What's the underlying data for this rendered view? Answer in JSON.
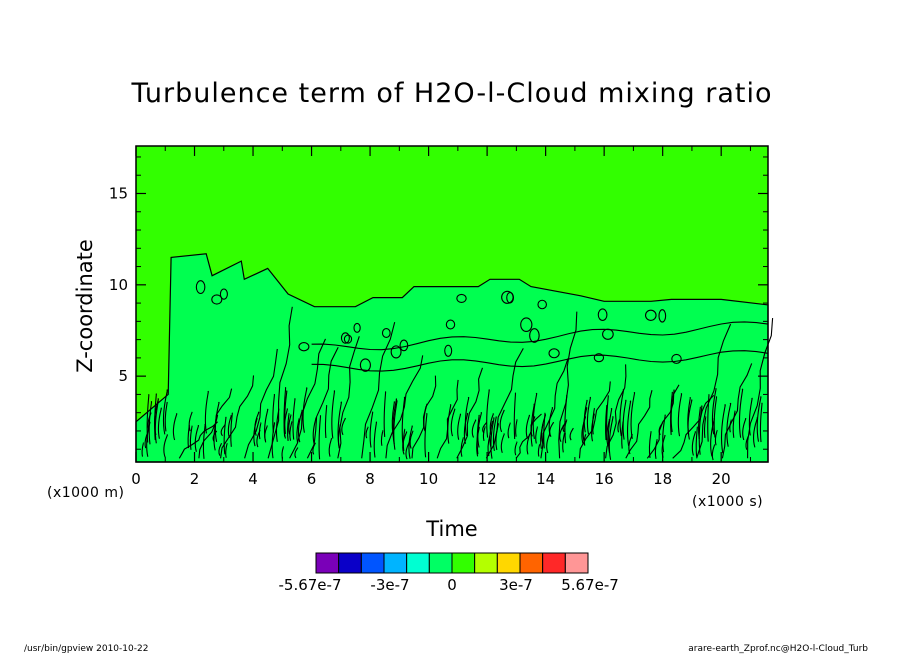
{
  "chart_data": {
    "type": "heatmap",
    "title": "Turbulence term of H2O-l-Cloud mixing ratio",
    "xlabel": "Time",
    "ylabel": "Z-coordinate",
    "x_unit": "(x1000 s)",
    "y_unit": "(x1000 m)",
    "xlim": [
      0,
      21.6
    ],
    "ylim": [
      0.3,
      17.6
    ],
    "xticks": [
      0,
      2,
      4,
      6,
      8,
      10,
      12,
      14,
      16,
      18,
      20
    ],
    "yticks": [
      5,
      10,
      15
    ],
    "colorbar": {
      "levels": [
        "-5.67e-7",
        "-3e-7",
        "0",
        "3e-7",
        "5.67e-7"
      ],
      "colors": [
        "#7a00b8",
        "#0a00c8",
        "#0055ff",
        "#00b4ff",
        "#00ffd2",
        "#00ff64",
        "#32ff00",
        "#b4ff00",
        "#ffd700",
        "#ff6400",
        "#ff2828",
        "#ff9696"
      ]
    },
    "background_value_color": "#32ff00",
    "cloud_layer": {
      "color": "#00ff50",
      "top": [
        [
          0,
          2.5
        ],
        [
          1.1,
          4
        ],
        [
          1.2,
          11.5
        ],
        [
          2.4,
          11.7
        ],
        [
          2.6,
          10.5
        ],
        [
          3.6,
          11.3
        ],
        [
          3.7,
          10.3
        ],
        [
          4.5,
          10.9
        ],
        [
          5.2,
          9.5
        ],
        [
          6.1,
          8.8
        ],
        [
          7.5,
          8.8
        ],
        [
          8.1,
          9.3
        ],
        [
          9.1,
          9.3
        ],
        [
          9.5,
          9.9
        ],
        [
          11.7,
          9.9
        ],
        [
          12.1,
          10.3
        ],
        [
          13.1,
          10.3
        ],
        [
          13.5,
          9.9
        ],
        [
          15.2,
          9.4
        ],
        [
          16.0,
          9.1
        ],
        [
          17.6,
          9.1
        ],
        [
          18.3,
          9.2
        ],
        [
          20.0,
          9.2
        ],
        [
          21.6,
          8.9
        ]
      ]
    }
  },
  "footer": {
    "left": "/usr/bin/gpview  2010-10-22",
    "right": "arare-earth_Zprof.nc@H2O-l-Cloud_Turb"
  }
}
